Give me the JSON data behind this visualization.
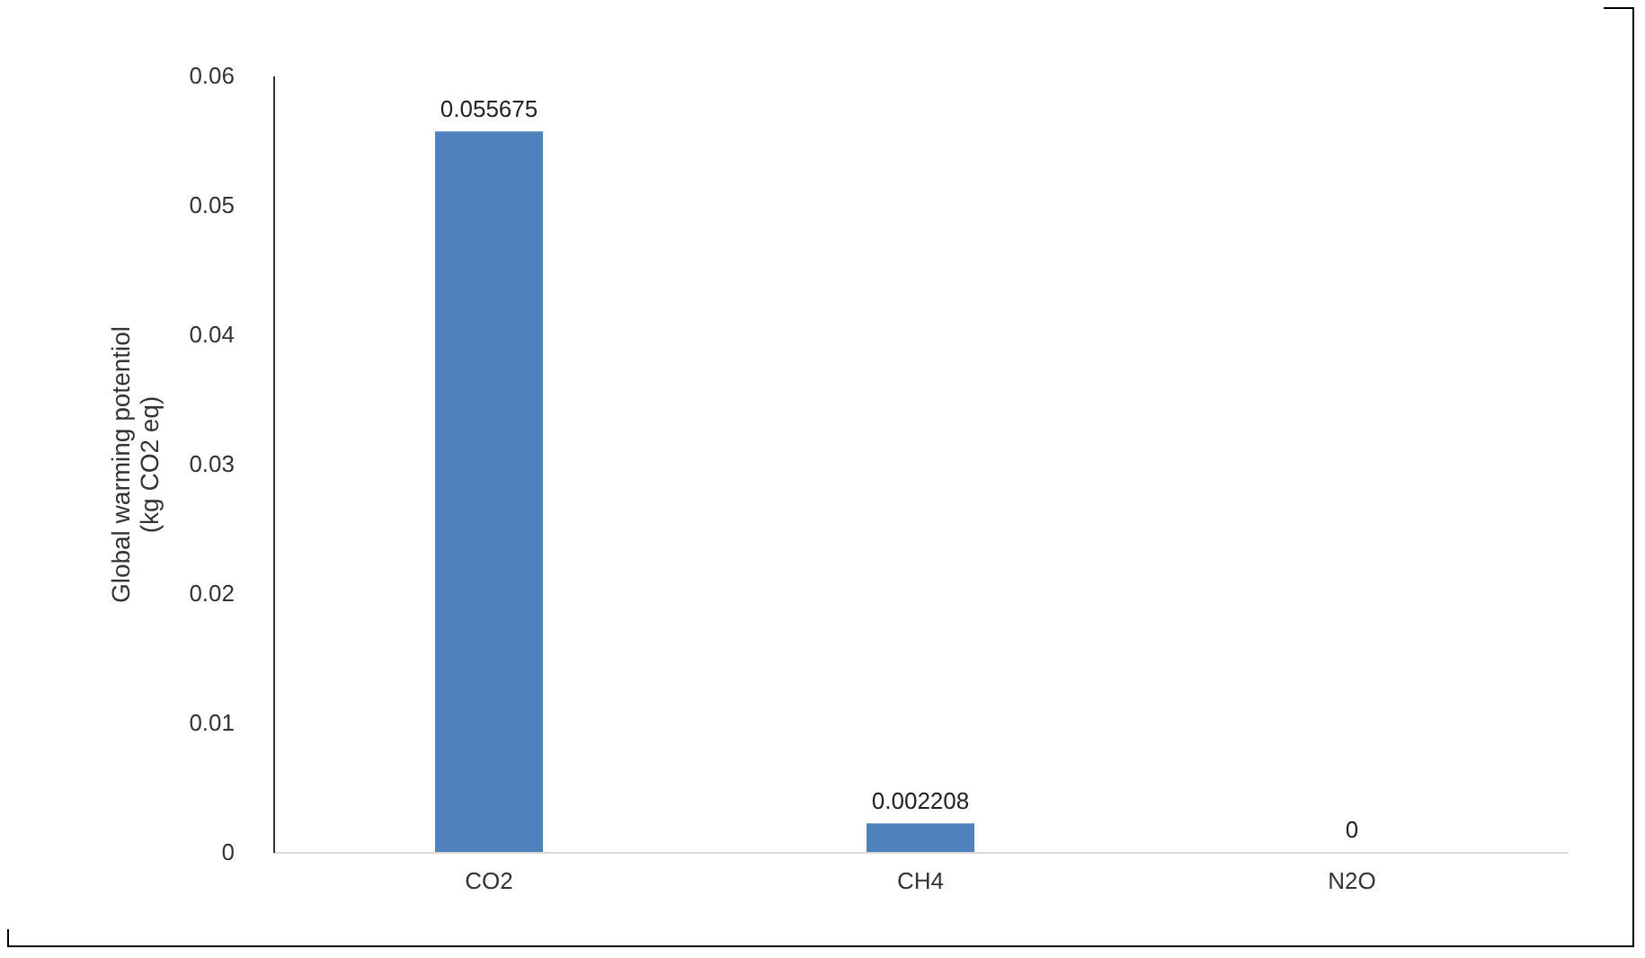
{
  "chart_data": {
    "type": "bar",
    "ylabel": "Global warming potentiol\n(kg CO2 eq)",
    "categories": [
      "CO2",
      "CH4",
      "N2O"
    ],
    "values": [
      0.055675,
      0.002208,
      0
    ],
    "color": "#4f81bd",
    "ylim": [
      0,
      0.06
    ],
    "yticks": [
      0,
      0.01,
      0.02,
      0.03,
      0.04,
      0.05,
      0.06
    ],
    "grid": false,
    "data_labels": true
  }
}
